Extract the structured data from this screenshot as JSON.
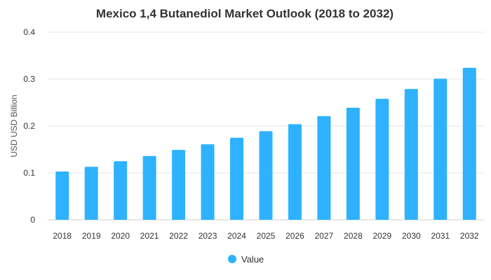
{
  "chart_data": {
    "type": "bar",
    "title": "Mexico 1,4 Butanediol Market Outlook (2018 to 2032)",
    "xlabel": "",
    "ylabel": "USD USD Billion",
    "categories": [
      "2018",
      "2019",
      "2020",
      "2021",
      "2022",
      "2023",
      "2024",
      "2025",
      "2026",
      "2027",
      "2028",
      "2029",
      "2030",
      "2031",
      "2032"
    ],
    "series": [
      {
        "name": "Value",
        "color": "#2eb2ff",
        "values": [
          0.103,
          0.113,
          0.125,
          0.136,
          0.149,
          0.161,
          0.175,
          0.189,
          0.204,
          0.221,
          0.239,
          0.258,
          0.279,
          0.301,
          0.324
        ]
      }
    ],
    "ylim": [
      0,
      0.4
    ],
    "yticks": [
      "0",
      "0.1",
      "0.2",
      "0.3",
      "0.4"
    ],
    "grid": true,
    "legend_position": "bottom"
  }
}
